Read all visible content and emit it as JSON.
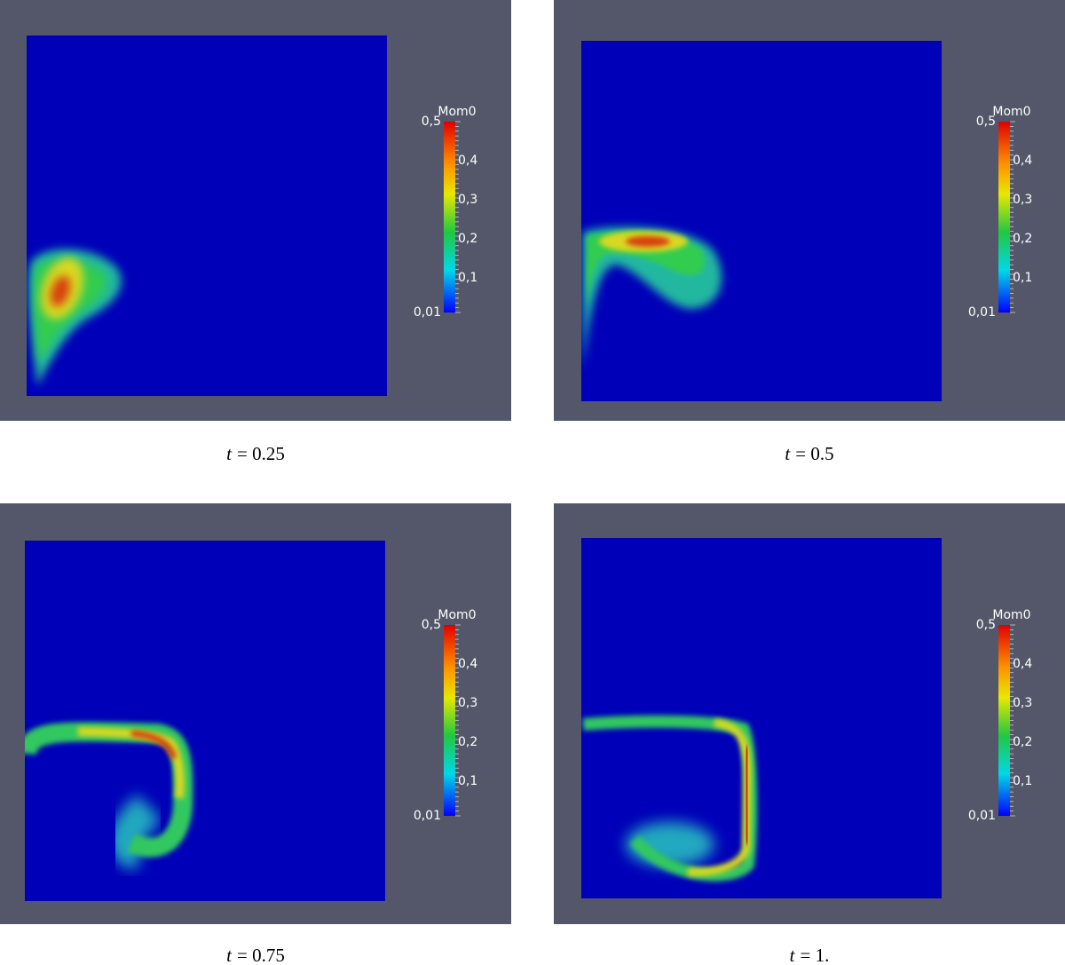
{
  "colorbar": {
    "title": "Mom0",
    "ticks": [
      "0,5",
      "0,4",
      "0,3",
      "0,2",
      "0,1",
      "0,01"
    ]
  },
  "panels": [
    {
      "symbol": "t",
      "caption": "= 0.25"
    },
    {
      "symbol": "t",
      "caption": "= 0.5"
    },
    {
      "symbol": "t",
      "caption": "= 0.75"
    },
    {
      "symbol": "t",
      "caption": "= 1."
    }
  ]
}
